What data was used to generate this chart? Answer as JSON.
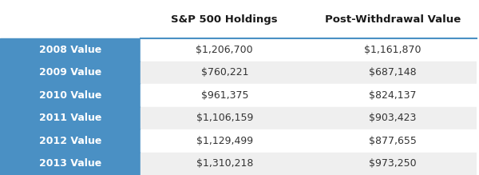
{
  "title_col1": "S&P 500 Holdings",
  "title_col2": "Post-Withdrawal Value",
  "rows": [
    {
      "label": "2008 Value",
      "col1": "$1,206,700",
      "col2": "$1,161,870"
    },
    {
      "label": "2009 Value",
      "col1": "$760,221",
      "col2": "$687,148"
    },
    {
      "label": "2010 Value",
      "col1": "$961,375",
      "col2": "$824,137"
    },
    {
      "label": "2011 Value",
      "col1": "$1,106,159",
      "col2": "$903,423"
    },
    {
      "label": "2012 Value",
      "col1": "$1,129,499",
      "col2": "$877,655"
    },
    {
      "label": "2013 Value",
      "col1": "$1,310,218",
      "col2": "$973,250"
    }
  ],
  "blue_bg": "#4A90C4",
  "white_bg": "#FFFFFF",
  "light_gray_bg": "#EFEFEF",
  "header_line_color": "#4A90C4",
  "label_text_color": "#FFFFFF",
  "data_text_color": "#333333",
  "header_text_color": "#1A1A1A",
  "fig_bg": "#FFFFFF"
}
